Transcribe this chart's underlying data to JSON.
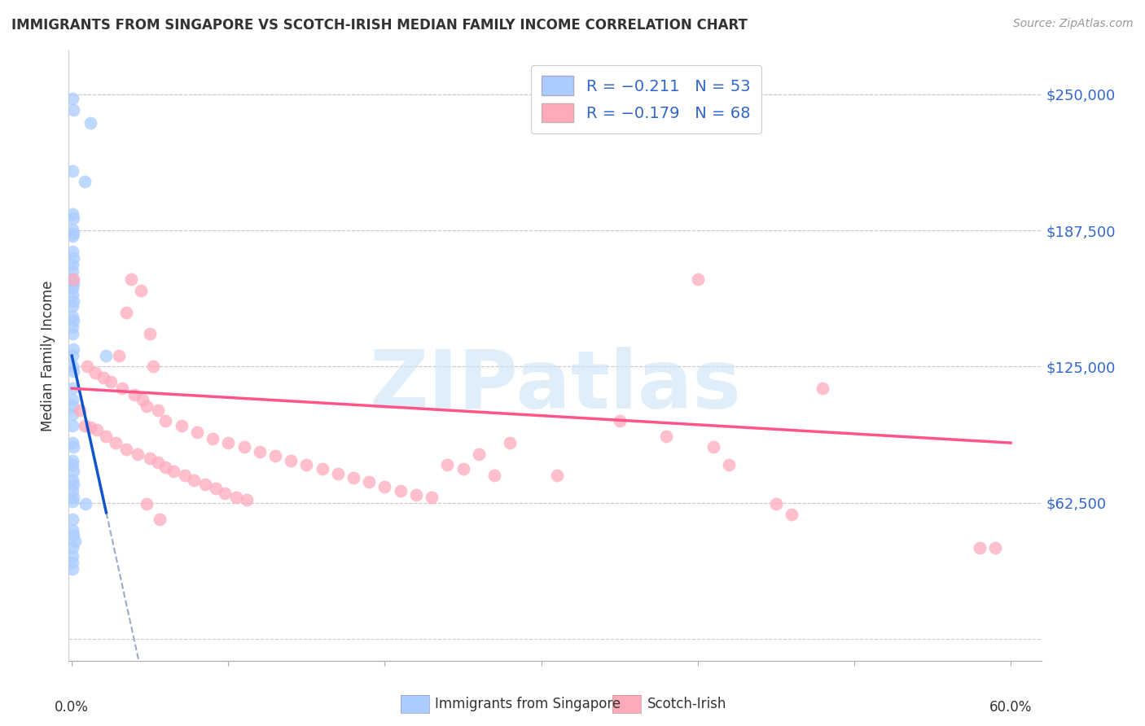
{
  "title": "IMMIGRANTS FROM SINGAPORE VS SCOTCH-IRISH MEDIAN FAMILY INCOME CORRELATION CHART",
  "source": "Source: ZipAtlas.com",
  "ylabel": "Median Family Income",
  "yticks": [
    0,
    62500,
    125000,
    187500,
    250000
  ],
  "ytick_labels": [
    "",
    "$62,500",
    "$125,000",
    "$187,500",
    "$250,000"
  ],
  "ylim": [
    -10000,
    270000
  ],
  "xlim": [
    -0.002,
    0.62
  ],
  "singapore_color": "#aaccff",
  "scotch_irish_color": "#ffaabb",
  "singapore_line_color": "#1155cc",
  "scotch_irish_line_color": "#ff5588",
  "singapore_dashed_color": "#99aacc",
  "background_color": "#ffffff",
  "watermark_text": "ZIPatlas",
  "legend_text_color": "#3366cc",
  "singapore_points": [
    [
      0.0005,
      248000
    ],
    [
      0.001,
      243000
    ],
    [
      0.012,
      237000
    ],
    [
      0.0005,
      215000
    ],
    [
      0.008,
      210000
    ],
    [
      0.0005,
      195000
    ],
    [
      0.001,
      193000
    ],
    [
      0.0005,
      188000
    ],
    [
      0.001,
      186000
    ],
    [
      0.0005,
      185000
    ],
    [
      0.0005,
      178000
    ],
    [
      0.001,
      175000
    ],
    [
      0.0005,
      172000
    ],
    [
      0.0005,
      165000
    ],
    [
      0.001,
      163000
    ],
    [
      0.0005,
      161000
    ],
    [
      0.001,
      155000
    ],
    [
      0.0005,
      153000
    ],
    [
      0.0005,
      148000
    ],
    [
      0.001,
      146000
    ],
    [
      0.0005,
      143000
    ],
    [
      0.0005,
      140000
    ],
    [
      0.0005,
      130000
    ],
    [
      0.0005,
      125000
    ],
    [
      0.001,
      123000
    ],
    [
      0.0005,
      115000
    ],
    [
      0.0005,
      107000
    ],
    [
      0.0005,
      98000
    ],
    [
      0.0005,
      90000
    ],
    [
      0.001,
      88000
    ],
    [
      0.0005,
      82000
    ],
    [
      0.0005,
      73000
    ],
    [
      0.001,
      71000
    ],
    [
      0.0005,
      63000
    ],
    [
      0.0005,
      55000
    ],
    [
      0.009,
      62000
    ],
    [
      0.002,
      45000
    ],
    [
      0.022,
      130000
    ],
    [
      0.0005,
      169000
    ],
    [
      0.0005,
      158000
    ],
    [
      0.001,
      133000
    ],
    [
      0.0005,
      110000
    ],
    [
      0.0005,
      103000
    ],
    [
      0.0005,
      80000
    ],
    [
      0.001,
      77000
    ],
    [
      0.0005,
      68000
    ],
    [
      0.001,
      65000
    ],
    [
      0.0005,
      50000
    ],
    [
      0.001,
      48000
    ],
    [
      0.0005,
      42000
    ],
    [
      0.0005,
      38000
    ],
    [
      0.0005,
      35000
    ],
    [
      0.0005,
      32000
    ]
  ],
  "scotch_irish_points": [
    [
      0.001,
      165000
    ],
    [
      0.038,
      165000
    ],
    [
      0.044,
      160000
    ],
    [
      0.035,
      150000
    ],
    [
      0.05,
      140000
    ],
    [
      0.03,
      130000
    ],
    [
      0.01,
      125000
    ],
    [
      0.052,
      125000
    ],
    [
      0.015,
      122000
    ],
    [
      0.02,
      120000
    ],
    [
      0.025,
      118000
    ],
    [
      0.032,
      115000
    ],
    [
      0.48,
      115000
    ],
    [
      0.04,
      112000
    ],
    [
      0.045,
      110000
    ],
    [
      0.048,
      107000
    ],
    [
      0.005,
      105000
    ],
    [
      0.055,
      105000
    ],
    [
      0.4,
      165000
    ],
    [
      0.35,
      100000
    ],
    [
      0.06,
      100000
    ],
    [
      0.008,
      98000
    ],
    [
      0.07,
      98000
    ],
    [
      0.012,
      97000
    ],
    [
      0.016,
      96000
    ],
    [
      0.08,
      95000
    ],
    [
      0.022,
      93000
    ],
    [
      0.38,
      93000
    ],
    [
      0.09,
      92000
    ],
    [
      0.028,
      90000
    ],
    [
      0.1,
      90000
    ],
    [
      0.11,
      88000
    ],
    [
      0.41,
      88000
    ],
    [
      0.035,
      87000
    ],
    [
      0.12,
      86000
    ],
    [
      0.042,
      85000
    ],
    [
      0.13,
      84000
    ],
    [
      0.05,
      83000
    ],
    [
      0.14,
      82000
    ],
    [
      0.055,
      81000
    ],
    [
      0.15,
      80000
    ],
    [
      0.42,
      80000
    ],
    [
      0.06,
      79000
    ],
    [
      0.16,
      78000
    ],
    [
      0.065,
      77000
    ],
    [
      0.17,
      76000
    ],
    [
      0.072,
      75000
    ],
    [
      0.31,
      75000
    ],
    [
      0.18,
      74000
    ],
    [
      0.078,
      73000
    ],
    [
      0.19,
      72000
    ],
    [
      0.085,
      71000
    ],
    [
      0.2,
      70000
    ],
    [
      0.092,
      69000
    ],
    [
      0.21,
      68000
    ],
    [
      0.098,
      67000
    ],
    [
      0.22,
      66000
    ],
    [
      0.105,
      65000
    ],
    [
      0.23,
      65000
    ],
    [
      0.112,
      64000
    ],
    [
      0.45,
      62000
    ],
    [
      0.048,
      62000
    ],
    [
      0.46,
      57000
    ],
    [
      0.056,
      55000
    ],
    [
      0.58,
      42000
    ],
    [
      0.59,
      42000
    ],
    [
      0.28,
      90000
    ],
    [
      0.26,
      85000
    ],
    [
      0.24,
      80000
    ],
    [
      0.25,
      78000
    ],
    [
      0.27,
      75000
    ]
  ]
}
